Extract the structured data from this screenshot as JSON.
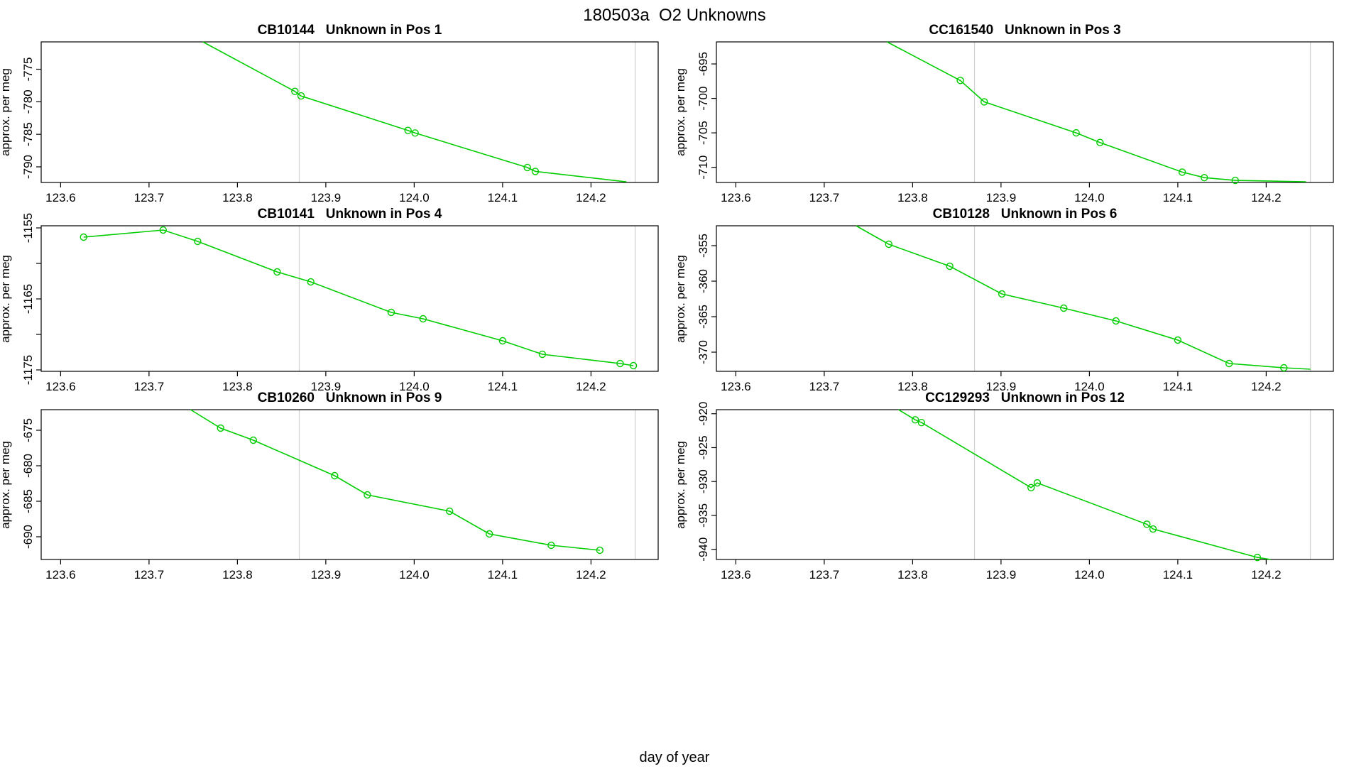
{
  "main_title": "180503a  O2 Unknowns",
  "x_axis_label": "day of year",
  "colors": {
    "line_green": "#00CD00",
    "gridline_gray": "#D4D4D4",
    "axis_black": "#000000",
    "background": "#FFFFFF"
  },
  "x_ticks": {
    "values": [
      123.6,
      123.7,
      123.8,
      123.9,
      124.0,
      124.1,
      124.2
    ],
    "labels": [
      "123.6",
      "123.7",
      "123.8",
      "123.9",
      "124.0",
      "124.1",
      "124.2"
    ]
  },
  "xlim": [
    123.578,
    124.276
  ],
  "gridlines_x": [
    123.87,
    124.25
  ],
  "chart_data": [
    {
      "type": "line",
      "sample_id": "CB10144",
      "title": "CB10144   Unknown in Pos 1",
      "position_label": "Unknown in Pos 1",
      "ylabel": "approx. per meg",
      "row": 0,
      "col": 0,
      "ylim": [
        -770.8,
        -792.4
      ],
      "y_ticks": {
        "values": [
          -775,
          -780,
          -785,
          -790
        ],
        "labels": [
          "-775",
          "-780",
          "-785",
          "-790"
        ]
      },
      "line": [
        [
          123.761,
          -770.8
        ],
        [
          123.865,
          -778.4
        ],
        [
          123.872,
          -779.1
        ],
        [
          123.993,
          -784.4
        ],
        [
          124.001,
          -784.8
        ],
        [
          124.128,
          -790.1
        ],
        [
          124.137,
          -790.7
        ],
        [
          124.24,
          -792.3
        ]
      ],
      "markers": [
        [
          123.865,
          -778.4
        ],
        [
          123.872,
          -779.1
        ],
        [
          123.993,
          -784.4
        ],
        [
          124.001,
          -784.8
        ],
        [
          124.128,
          -790.1
        ],
        [
          124.137,
          -790.7
        ]
      ]
    },
    {
      "type": "line",
      "sample_id": "CC161540",
      "title": "CC161540   Unknown in Pos 3",
      "position_label": "Unknown in Pos 3",
      "ylabel": "approx. per meg",
      "row": 0,
      "col": 1,
      "ylim": [
        -691.8,
        -712.2
      ],
      "y_ticks": {
        "values": [
          -695,
          -700,
          -705,
          -710
        ],
        "labels": [
          "-695",
          "-700",
          "-705",
          "-710"
        ]
      },
      "line": [
        [
          123.771,
          -691.8
        ],
        [
          123.854,
          -697.4
        ],
        [
          123.881,
          -700.5
        ],
        [
          123.985,
          -705.0
        ],
        [
          124.012,
          -706.4
        ],
        [
          124.105,
          -710.7
        ],
        [
          124.13,
          -711.5
        ],
        [
          124.165,
          -711.9
        ],
        [
          124.245,
          -712.1
        ]
      ],
      "markers": [
        [
          123.854,
          -697.4
        ],
        [
          123.881,
          -700.5
        ],
        [
          123.985,
          -705.0
        ],
        [
          124.012,
          -706.4
        ],
        [
          124.105,
          -710.7
        ],
        [
          124.13,
          -711.5
        ],
        [
          124.165,
          -711.9
        ]
      ]
    },
    {
      "type": "line",
      "sample_id": "CB10141",
      "title": "CB10141   Unknown in Pos 4",
      "position_label": "Unknown in Pos 4",
      "ylabel": "approx. per meg",
      "row": 1,
      "col": 0,
      "ylim": [
        -1154.7,
        -1175.2
      ],
      "y_ticks": {
        "values": [
          -1155,
          -1160,
          -1165,
          -1170,
          -1175
        ],
        "labels": [
          "-1155",
          "",
          "-1165",
          "",
          "-1175"
        ]
      },
      "line": [
        [
          123.626,
          -1156.3
        ],
        [
          123.716,
          -1155.3
        ],
        [
          123.755,
          -1156.9
        ],
        [
          123.845,
          -1161.2
        ],
        [
          123.883,
          -1162.6
        ],
        [
          123.974,
          -1166.9
        ],
        [
          124.01,
          -1167.8
        ],
        [
          124.1,
          -1170.9
        ],
        [
          124.145,
          -1172.8
        ],
        [
          124.233,
          -1174.1
        ],
        [
          124.248,
          -1174.4
        ]
      ],
      "markers": [
        [
          123.626,
          -1156.3
        ],
        [
          123.716,
          -1155.3
        ],
        [
          123.755,
          -1156.9
        ],
        [
          123.845,
          -1161.2
        ],
        [
          123.883,
          -1162.6
        ],
        [
          123.974,
          -1166.9
        ],
        [
          124.01,
          -1167.8
        ],
        [
          124.1,
          -1170.9
        ],
        [
          124.145,
          -1172.8
        ],
        [
          124.233,
          -1174.1
        ],
        [
          124.248,
          -1174.4
        ]
      ]
    },
    {
      "type": "line",
      "sample_id": "CB10128",
      "title": "CB10128   Unknown in Pos 6",
      "position_label": "Unknown in Pos 6",
      "ylabel": "approx. per meg",
      "row": 1,
      "col": 1,
      "ylim": [
        -352.2,
        -372.7
      ],
      "y_ticks": {
        "values": [
          -355,
          -360,
          -365,
          -370
        ],
        "labels": [
          "-355",
          "-360",
          "-365",
          "-370"
        ]
      },
      "line": [
        [
          123.736,
          -352.2
        ],
        [
          123.773,
          -354.8
        ],
        [
          123.842,
          -357.9
        ],
        [
          123.901,
          -361.8
        ],
        [
          123.971,
          -363.8
        ],
        [
          124.03,
          -365.6
        ],
        [
          124.1,
          -368.3
        ],
        [
          124.158,
          -371.6
        ],
        [
          124.22,
          -372.2
        ],
        [
          124.25,
          -372.4
        ]
      ],
      "markers": [
        [
          123.773,
          -354.8
        ],
        [
          123.842,
          -357.9
        ],
        [
          123.901,
          -361.8
        ],
        [
          123.971,
          -363.8
        ],
        [
          124.03,
          -365.6
        ],
        [
          124.1,
          -368.3
        ],
        [
          124.158,
          -371.6
        ],
        [
          124.22,
          -372.2
        ]
      ]
    },
    {
      "type": "line",
      "sample_id": "CB10260",
      "title": "CB10260   Unknown in Pos 9",
      "position_label": "Unknown in Pos 9",
      "ylabel": "approx. per meg",
      "row": 2,
      "col": 0,
      "ylim": [
        -672.1,
        -693.2
      ],
      "y_ticks": {
        "values": [
          -675,
          -680,
          -685,
          -690
        ],
        "labels": [
          "-675",
          "-680",
          "-685",
          "-690"
        ]
      },
      "line": [
        [
          123.747,
          -672.1
        ],
        [
          123.781,
          -674.7
        ],
        [
          123.818,
          -676.4
        ],
        [
          123.91,
          -681.4
        ],
        [
          123.947,
          -684.1
        ],
        [
          124.04,
          -686.4
        ],
        [
          124.085,
          -689.6
        ],
        [
          124.155,
          -691.2
        ],
        [
          124.21,
          -691.9
        ]
      ],
      "markers": [
        [
          123.781,
          -674.7
        ],
        [
          123.818,
          -676.4
        ],
        [
          123.91,
          -681.4
        ],
        [
          123.947,
          -684.1
        ],
        [
          124.04,
          -686.4
        ],
        [
          124.085,
          -689.6
        ],
        [
          124.155,
          -691.2
        ],
        [
          124.21,
          -691.9
        ]
      ]
    },
    {
      "type": "line",
      "sample_id": "CC129293",
      "title": "CC129293   Unknown in Pos 12",
      "position_label": "Unknown in Pos 12",
      "ylabel": "approx. per meg",
      "row": 2,
      "col": 1,
      "ylim": [
        -919.4,
        -941.5
      ],
      "y_ticks": {
        "values": [
          -920,
          -925,
          -930,
          -935,
          -940
        ],
        "labels": [
          "-920",
          "-925",
          "-930",
          "-935",
          "-940"
        ]
      },
      "line": [
        [
          123.784,
          -919.4
        ],
        [
          123.803,
          -920.9
        ],
        [
          123.81,
          -921.3
        ],
        [
          123.934,
          -930.9
        ],
        [
          123.941,
          -930.2
        ],
        [
          124.065,
          -936.3
        ],
        [
          124.072,
          -937.0
        ],
        [
          124.19,
          -941.2
        ],
        [
          124.205,
          -941.5
        ]
      ],
      "markers": [
        [
          123.803,
          -920.9
        ],
        [
          123.81,
          -921.3
        ],
        [
          123.934,
          -930.9
        ],
        [
          123.941,
          -930.2
        ],
        [
          124.065,
          -936.3
        ],
        [
          124.072,
          -937.0
        ],
        [
          124.19,
          -941.2
        ]
      ]
    }
  ]
}
